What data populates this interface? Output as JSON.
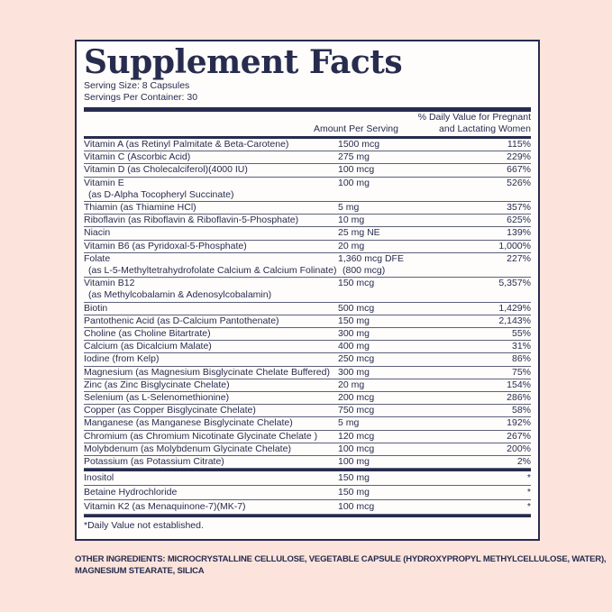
{
  "colors": {
    "navy": "#272c4f",
    "pink": "#fce4dc",
    "paper": "#fffdfb"
  },
  "label": {
    "title": "Supplement Facts",
    "serving_size": "Serving Size: 8 Capsules",
    "servings_per_container": "Servings Per Container: 30",
    "columns": {
      "amount": "Amount Per Serving",
      "dv_line1": "% Daily Value for Pregnant",
      "dv_line2": "and Lactating Women"
    },
    "rows": [
      {
        "name": "Vitamin A (as Retinyl Palmitate & Beta-Carotene)",
        "amount": "1500 mcg",
        "dv": "115%"
      },
      {
        "name": "Vitamin C (Ascorbic Acid)",
        "amount": "275 mg",
        "dv": "229%"
      },
      {
        "name": "Vitamin D (as Cholecalciferol)(4000 IU)",
        "amount": "100 mcg",
        "dv": "667%"
      },
      {
        "name": "Vitamin E",
        "name2": "(as D-Alpha Tocopheryl Succinate)",
        "amount": "100 mg",
        "dv": "526%"
      },
      {
        "name": "Thiamin (as Thiamine HCl)",
        "amount": "5 mg",
        "dv": "357%"
      },
      {
        "name": "Riboflavin (as Riboflavin & Riboflavin-5-Phosphate)",
        "amount": "10 mg",
        "dv": "625%"
      },
      {
        "name": "Niacin",
        "amount": "25 mg NE",
        "dv": "139%"
      },
      {
        "name": "Vitamin B6 (as Pyridoxal-5-Phosphate)",
        "amount": "20 mg",
        "dv": "1,000%"
      },
      {
        "name": "Folate",
        "name2": "(as L-5-Methyltetrahydrofolate Calcium & Calcium Folinate)",
        "amount": "1,360 mcg DFE",
        "amount2": "(800 mcg)",
        "dv": "227%"
      },
      {
        "name": "Vitamin B12",
        "name2": "(as Methylcobalamin & Adenosylcobalamin)",
        "amount": "150 mcg",
        "dv": "5,357%"
      },
      {
        "name": "Biotin",
        "amount": "500 mcg",
        "dv": "1,429%"
      },
      {
        "name": "Pantothenic Acid (as D-Calcium Pantothenate)",
        "amount": "150 mg",
        "dv": "2,143%"
      },
      {
        "name": "Choline (as Choline Bitartrate)",
        "amount": "300 mg",
        "dv": "55%"
      },
      {
        "name": "Calcium (as Dicalcium Malate)",
        "amount": "400 mg",
        "dv": "31%"
      },
      {
        "name": "Iodine (from Kelp)",
        "amount": "250 mcg",
        "dv": "86%"
      },
      {
        "name": "Magnesium (as Magnesium Bisglycinate Chelate Buffered)",
        "amount": "300 mg",
        "dv": "75%"
      },
      {
        "name": "Zinc (as Zinc Bisglycinate Chelate)",
        "amount": "20 mg",
        "dv": "154%"
      },
      {
        "name": "Selenium (as L-Selenomethionine)",
        "amount": "200 mcg",
        "dv": "286%"
      },
      {
        "name": "Copper (as Copper Bisglycinate Chelate)",
        "amount": "750 mcg",
        "dv": "58%"
      },
      {
        "name": "Manganese (as Manganese Bisglycinate Chelate)",
        "amount": "5 mg",
        "dv": "192%"
      },
      {
        "name": "Chromium (as Chromium Nicotinate Glycinate Chelate )",
        "amount": "120 mcg",
        "dv": "267%"
      },
      {
        "name": "Molybdenum (as Molybdenum Glycinate Chelate)",
        "amount": "100 mcg",
        "dv": "200%"
      },
      {
        "name": "Potassium (as Potassium Citrate)",
        "amount": "100 mg",
        "dv": "2%"
      }
    ],
    "extra_rows": [
      {
        "name": "Inositol",
        "amount": "150 mg",
        "dv": "*"
      },
      {
        "name": "Betaine Hydrochloride",
        "amount": "150 mg",
        "dv": "*"
      },
      {
        "name": "Vitamin K2 (as Menaquinone-7)(MK-7)",
        "amount": "100 mcg",
        "dv": "*"
      }
    ],
    "footnote": "*Daily Value not established."
  },
  "other_ingredients": {
    "label": "OTHER INGREDIENTS:",
    "line1": "MICROCRYSTALLINE CELLULOSE, VEGETABLE CAPSULE (HYDROXYPROPYL METHYLCELLULOSE, WATER),",
    "line2": "MAGNESIUM STEARATE, SILICA"
  }
}
